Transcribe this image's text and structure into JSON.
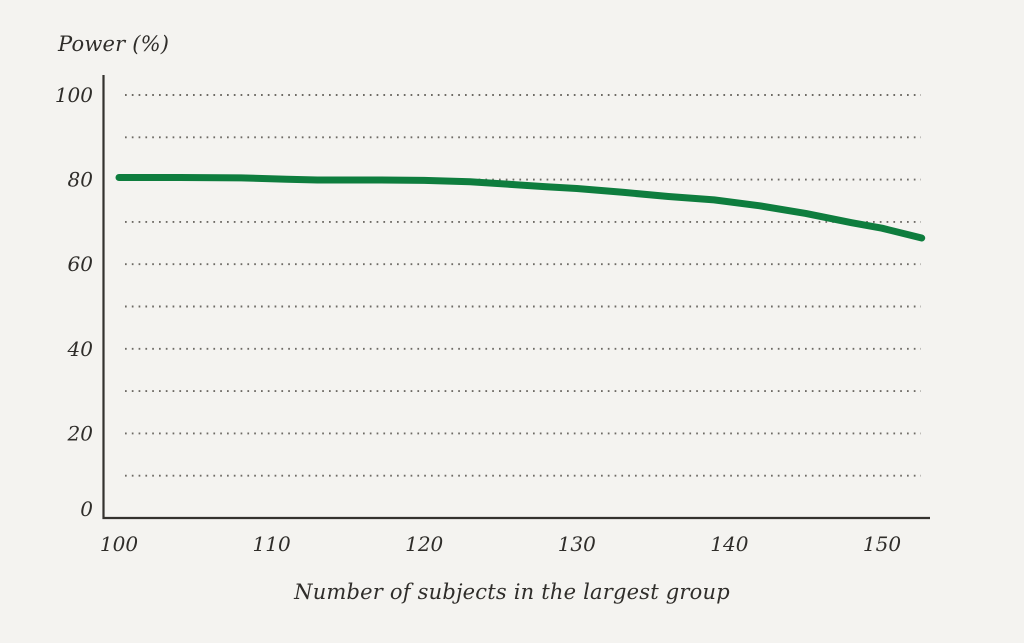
{
  "page": {
    "background": "#f4f3f0"
  },
  "chart_data": {
    "type": "line",
    "title": "",
    "ylabel": "Power (%)",
    "xlabel": "Number of subjects in the largest group",
    "x_ticks": [
      100,
      110,
      120,
      130,
      140,
      150
    ],
    "y_ticks": [
      0,
      20,
      40,
      60,
      80,
      100
    ],
    "y_gridlines": [
      10,
      20,
      30,
      40,
      50,
      60,
      70,
      80,
      90,
      100
    ],
    "xlim": [
      99,
      153.2
    ],
    "ylim": [
      0,
      100
    ],
    "grid_style": "dotted-horizontal",
    "legend_position": "none",
    "colors": {
      "line": "#0e7d3e",
      "axis": "#34322e",
      "grid": "#6d6a64",
      "text": "#2f2d2a",
      "background": "#f4f3f0"
    },
    "series": [
      {
        "name": "Power (%)",
        "x": [
          100,
          104,
          108,
          111,
          113,
          117,
          120,
          123,
          126,
          128,
          130,
          133,
          136,
          139,
          142,
          145,
          148,
          150,
          152.6
        ],
        "y": [
          80.5,
          80.5,
          80.4,
          80.1,
          79.9,
          79.9,
          79.8,
          79.5,
          78.8,
          78.3,
          77.9,
          77.0,
          76.0,
          75.2,
          73.8,
          72.0,
          69.8,
          68.5,
          66.2
        ]
      }
    ]
  }
}
